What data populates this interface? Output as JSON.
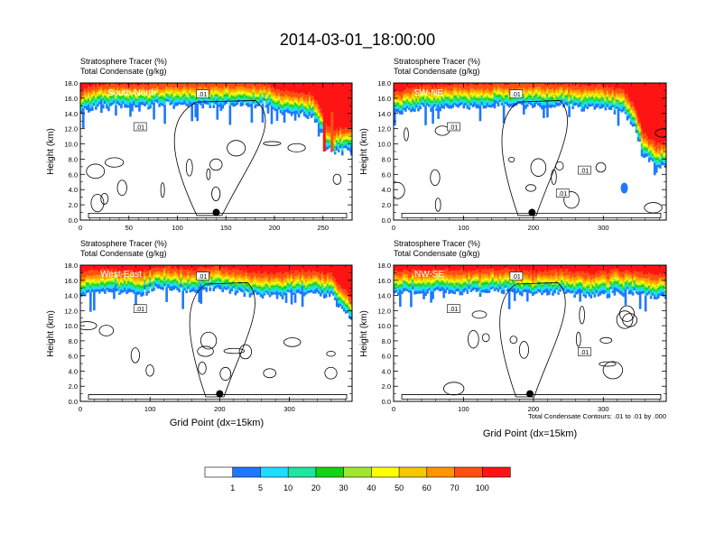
{
  "title": "2014-03-01_18:00:00",
  "colors": {
    "palette": [
      "#ffffff",
      "#1e78ff",
      "#1edcff",
      "#1ee6a0",
      "#14d214",
      "#a0e632",
      "#ffff00",
      "#f5c800",
      "#ff9600",
      "#ff5014",
      "#ff1414"
    ]
  },
  "colorbar": {
    "labels": [
      "1",
      "5",
      "10",
      "20",
      "30",
      "40",
      "50",
      "60",
      "70",
      "100"
    ]
  },
  "footnote": "Total Condensate Contours: .01 to .01 by .000",
  "chart_data": [
    {
      "type": "heatmap",
      "id": "south-north",
      "panel_label": "South-North",
      "header_line1": "Stratosphere Tracer   (%)",
      "header_line2": "Total Condensate   (g/kg)",
      "ylabel": "Height (km)",
      "xlabel": "",
      "ylim": [
        0,
        18
      ],
      "yticks": [
        "0.0",
        "2.0",
        "4.0",
        "6.0",
        "8.0",
        "10.0",
        "12.0",
        "14.0",
        "16.0",
        "18.0"
      ],
      "xlim": [
        0,
        280
      ],
      "xticks": [
        0,
        50,
        100,
        150,
        200,
        250
      ],
      "tropopause_km": [
        [
          0,
          14.2
        ],
        [
          12,
          15.1
        ],
        [
          28,
          15.4
        ],
        [
          50,
          15.3
        ],
        [
          75,
          15.5
        ],
        [
          100,
          15.6
        ],
        [
          120,
          15.8
        ],
        [
          140,
          15.9
        ],
        [
          160,
          15.9
        ],
        [
          185,
          15.4
        ],
        [
          205,
          14.6
        ],
        [
          222,
          14.2
        ],
        [
          236,
          14.1
        ],
        [
          246,
          12.8
        ],
        [
          254,
          9.6
        ],
        [
          262,
          9.3
        ],
        [
          270,
          9.5
        ],
        [
          280,
          9.6
        ]
      ],
      "contour_labels": [
        ".01",
        ".01"
      ],
      "marker": {
        "x": 140,
        "y_km": 1.0
      }
    },
    {
      "type": "heatmap",
      "id": "sw-ne",
      "panel_label": "SW-NE",
      "header_line1": "Stratosphere Tracer   (%)",
      "header_line2": "Total Condensate   (g/kg)",
      "ylabel": "Height (km)",
      "xlabel": "",
      "ylim": [
        0,
        18
      ],
      "yticks": [
        "0.0",
        "2.0",
        "4.0",
        "6.0",
        "8.0",
        "10.0",
        "12.0",
        "14.0",
        "16.0",
        "18.0"
      ],
      "xlim": [
        0,
        390
      ],
      "xticks": [
        0,
        100,
        200,
        300
      ],
      "tropopause_km": [
        [
          0,
          14.0
        ],
        [
          20,
          14.8
        ],
        [
          60,
          15.0
        ],
        [
          100,
          15.2
        ],
        [
          150,
          15.4
        ],
        [
          200,
          15.5
        ],
        [
          250,
          15.2
        ],
        [
          300,
          15.1
        ],
        [
          330,
          14.4
        ],
        [
          345,
          12.3
        ],
        [
          355,
          9.4
        ],
        [
          365,
          8.2
        ],
        [
          378,
          7.4
        ],
        [
          390,
          7.7
        ]
      ],
      "contour_labels": [
        ".01",
        ".01",
        ".01",
        ".01"
      ],
      "marker": {
        "x": 198,
        "y_km": 1.0
      }
    },
    {
      "type": "heatmap",
      "id": "west-east",
      "panel_label": "West-East",
      "header_line1": "Stratosphere Tracer   (%)",
      "header_line2": "Total Condensate   (g/kg)",
      "ylabel": "Height (km)",
      "xlabel": "Grid Point (dx=15km)",
      "ylim": [
        0,
        18
      ],
      "yticks": [
        "0.0",
        "2.0",
        "4.0",
        "6.0",
        "8.0",
        "10.0",
        "12.0",
        "14.0",
        "16.0",
        "18.0"
      ],
      "xlim": [
        0,
        390
      ],
      "xticks": [
        0,
        100,
        200,
        300
      ],
      "tropopause_km": [
        [
          0,
          14.6
        ],
        [
          40,
          14.9
        ],
        [
          80,
          14.6
        ],
        [
          120,
          15.2
        ],
        [
          160,
          14.9
        ],
        [
          200,
          15.2
        ],
        [
          240,
          14.6
        ],
        [
          280,
          14.4
        ],
        [
          320,
          14.7
        ],
        [
          360,
          14.3
        ],
        [
          385,
          11.6
        ],
        [
          390,
          11.2
        ]
      ],
      "contour_labels": [
        ".01",
        ".01"
      ],
      "marker": {
        "x": 200,
        "y_km": 1.0
      }
    },
    {
      "type": "heatmap",
      "id": "nw-se",
      "panel_label": "NW-SE",
      "header_line1": "Stratosphere Tracer   (%)",
      "header_line2": "Total Condensate   (g/kg)",
      "ylabel": "Height (km)",
      "xlabel": "Grid Point (dx=15km)",
      "ylim": [
        0,
        18
      ],
      "yticks": [
        "0.0",
        "2.0",
        "4.0",
        "6.0",
        "8.0",
        "10.0",
        "12.0",
        "14.0",
        "16.0",
        "18.0"
      ],
      "xlim": [
        0,
        390
      ],
      "xticks": [
        0,
        100,
        200,
        300
      ],
      "tropopause_km": [
        [
          0,
          14.8
        ],
        [
          40,
          14.6
        ],
        [
          80,
          14.8
        ],
        [
          120,
          14.7
        ],
        [
          160,
          15.0
        ],
        [
          200,
          14.5
        ],
        [
          240,
          14.9
        ],
        [
          280,
          14.3
        ],
        [
          320,
          14.8
        ],
        [
          360,
          14.4
        ],
        [
          390,
          14.2
        ]
      ],
      "contour_labels": [
        ".01",
        ".01",
        ".01"
      ],
      "marker": {
        "x": 195,
        "y_km": 1.0
      }
    }
  ]
}
